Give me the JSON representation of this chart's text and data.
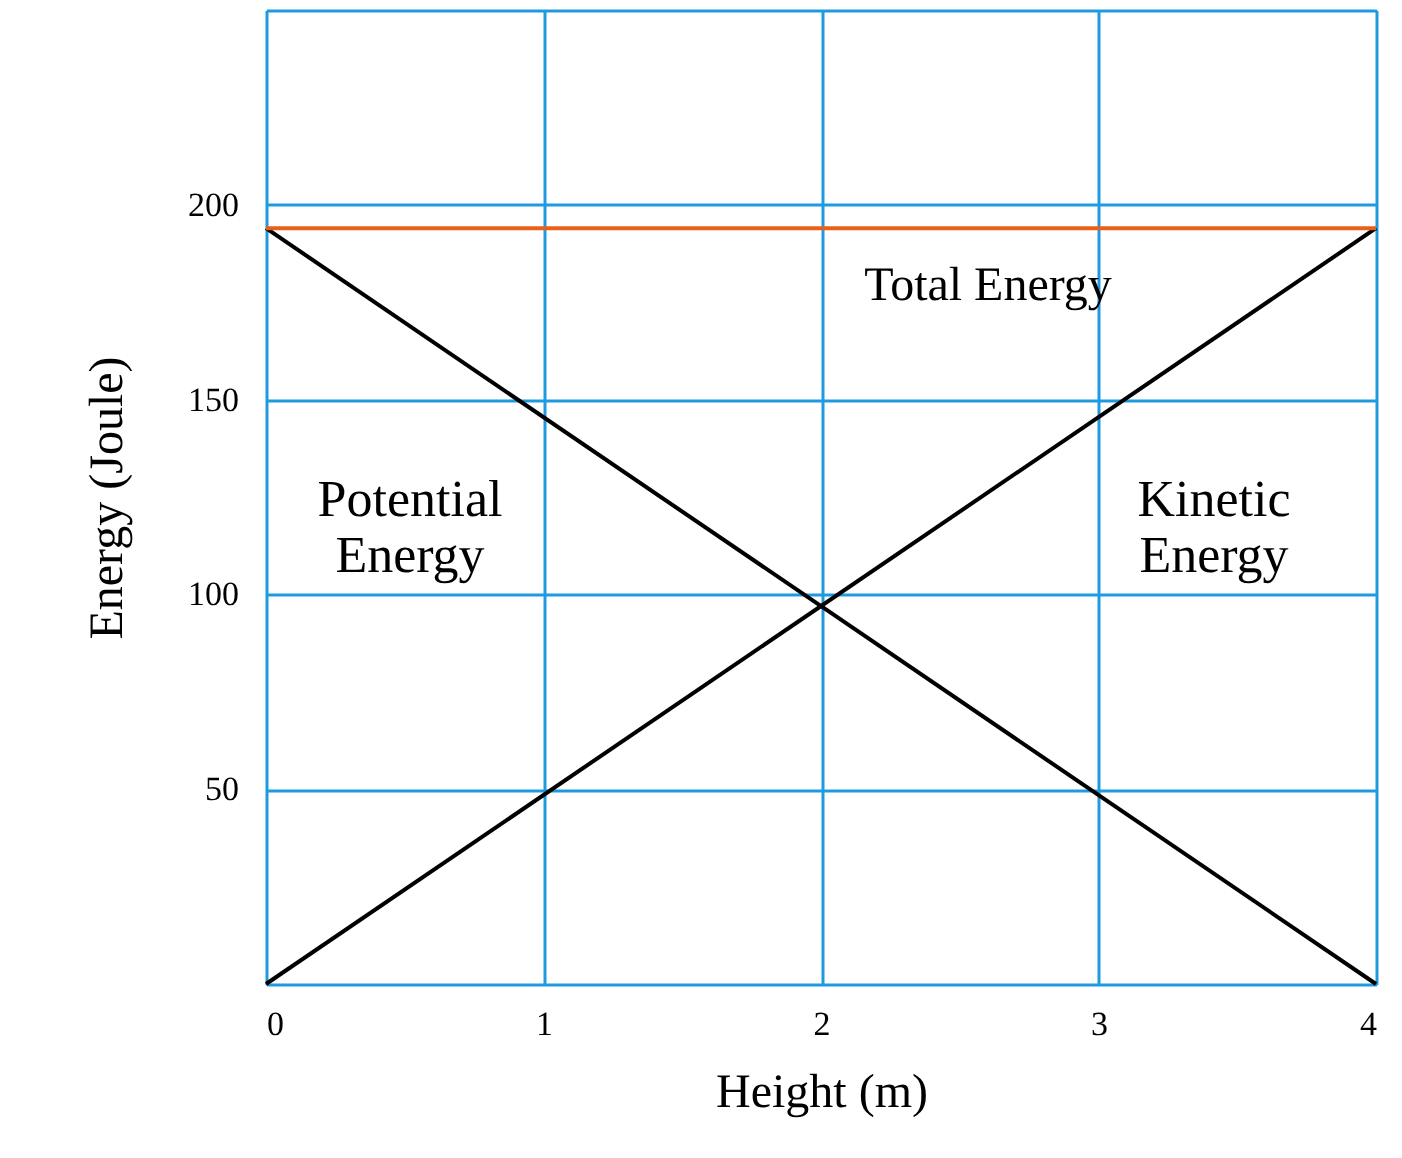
{
  "chart_data": {
    "type": "line",
    "xlabel": "Height (m)",
    "ylabel": "Energy (Joule)",
    "x": [
      0,
      4
    ],
    "series": [
      {
        "color": "#000000",
        "values": [
          194,
          0
        ]
      },
      {
        "color": "#000000",
        "values": [
          0,
          194
        ]
      },
      {
        "color": "#e8601c",
        "values": [
          194,
          194
        ]
      }
    ],
    "xlim": [
      0,
      4
    ],
    "ylim": [
      0,
      250
    ],
    "xticks": [
      0,
      1,
      2,
      3,
      4
    ],
    "yticks": [
      {
        "value": 0,
        "label": null
      },
      50,
      100,
      150,
      200,
      {
        "value": 250,
        "label": null
      }
    ],
    "grid": true,
    "marker": "none",
    "line_style": "solid",
    "annotations": [
      "Potential\nEnergy",
      "Total Energy",
      "Kinetic\nEnergy"
    ]
  }
}
